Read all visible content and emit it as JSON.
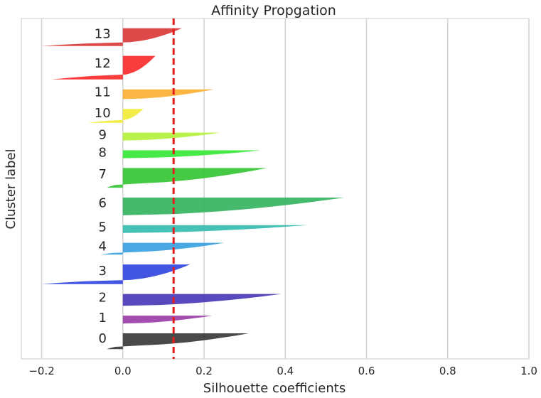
{
  "chart_data": {
    "type": "silhouette",
    "title": "Affinity Propgation",
    "xlabel": "Silhouette coefficients",
    "ylabel": "Cluster label",
    "xlim": [
      -0.25,
      1.0
    ],
    "x_ticks": [
      -0.2,
      0.0,
      0.2,
      0.4,
      0.6,
      0.8,
      1.0
    ],
    "x_tick_labels": [
      "−0.2",
      "0.0",
      "0.2",
      "0.4",
      "0.6",
      "0.8",
      "1.0"
    ],
    "grid": "x",
    "average_silhouette": 0.125,
    "average_line_color": "#e8191a",
    "clusters": [
      {
        "label": "0",
        "color": "#3a3a3a",
        "max": 0.31,
        "min": -0.04
      },
      {
        "label": "1",
        "color": "#9a3ea8",
        "max": 0.22,
        "min": 0.0
      },
      {
        "label": "2",
        "color": "#4a3ab8",
        "max": 0.39,
        "min": 0.0
      },
      {
        "label": "3",
        "color": "#3248de",
        "max": 0.165,
        "min": -0.2
      },
      {
        "label": "4",
        "color": "#3aa0e0",
        "max": 0.25,
        "min": -0.055
      },
      {
        "label": "5",
        "color": "#36bcb0",
        "max": 0.455,
        "min": 0.0
      },
      {
        "label": "6",
        "color": "#36b460",
        "max": 0.545,
        "min": 0.0
      },
      {
        "label": "7",
        "color": "#36c536",
        "max": 0.355,
        "min": -0.04
      },
      {
        "label": "8",
        "color": "#36e836",
        "max": 0.34,
        "min": 0.0
      },
      {
        "label": "9",
        "color": "#b4f03c",
        "max": 0.24,
        "min": 0.0
      },
      {
        "label": "10",
        "color": "#f0ec36",
        "max": 0.05,
        "min": -0.085
      },
      {
        "label": "11",
        "color": "#fcb036",
        "max": 0.225,
        "min": 0.0
      },
      {
        "label": "12",
        "color": "#f82c2c",
        "max": 0.08,
        "min": -0.175
      },
      {
        "label": "13",
        "color": "#da3a3a",
        "max": 0.145,
        "min": -0.2
      }
    ]
  }
}
